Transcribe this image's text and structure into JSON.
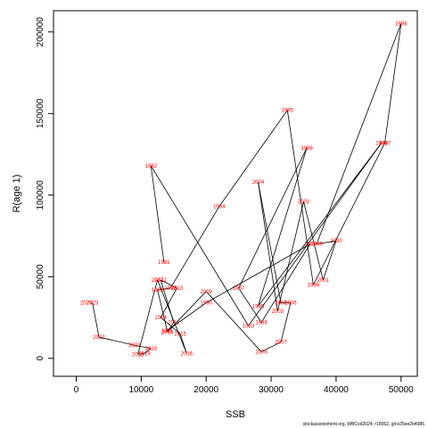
{
  "chart_data": {
    "type": "line",
    "title": "",
    "xlabel": "SSB",
    "ylabel": "R(age 1)",
    "xlim": [
      -3500,
      52500
    ],
    "ylim": [
      -11000,
      213000
    ],
    "xticks": [
      0,
      10000,
      20000,
      30000,
      40000,
      50000
    ],
    "yticks": [
      0,
      50000,
      100000,
      150000,
      200000
    ],
    "grid": false,
    "line_color": "#000000",
    "label_color": "#ff0000",
    "points": [
      {
        "year": "1981",
        "x": 13500,
        "y": 59000
      },
      {
        "year": "1982",
        "x": 11500,
        "y": 118000
      },
      {
        "year": "1983",
        "x": 26500,
        "y": 20000
      },
      {
        "year": "1984",
        "x": 47000,
        "y": 132000
      },
      {
        "year": "1985",
        "x": 28000,
        "y": 32000
      },
      {
        "year": "1986",
        "x": 35500,
        "y": 129000
      },
      {
        "year": "1987",
        "x": 25000,
        "y": 43000
      },
      {
        "year": "1988",
        "x": 28500,
        "y": 22000
      },
      {
        "year": "1989",
        "x": 36000,
        "y": 70000
      },
      {
        "year": "1990",
        "x": 20000,
        "y": 34000
      },
      {
        "year": "1991",
        "x": 14000,
        "y": 17000
      },
      {
        "year": "1992",
        "x": 12500,
        "y": 42000
      },
      {
        "year": "1993",
        "x": 14500,
        "y": 43000
      },
      {
        "year": "1994",
        "x": 22000,
        "y": 93000
      },
      {
        "year": "1995",
        "x": 32500,
        "y": 152000
      },
      {
        "year": "1996",
        "x": 36500,
        "y": 45000
      },
      {
        "year": "1997",
        "x": 47500,
        "y": 132000
      },
      {
        "year": "1998",
        "x": 50000,
        "y": 205000
      },
      {
        "year": "1999",
        "x": 37000,
        "y": 70000
      },
      {
        "year": "2000",
        "x": 40000,
        "y": 72000
      },
      {
        "year": "2001",
        "x": 38000,
        "y": 48000
      },
      {
        "year": "2002",
        "x": 35000,
        "y": 96000
      },
      {
        "year": "2003",
        "x": 31000,
        "y": 29000
      },
      {
        "year": "2004",
        "x": 28000,
        "y": 108000
      },
      {
        "year": "2005",
        "x": 31500,
        "y": 34000
      },
      {
        "year": "2006",
        "x": 33000,
        "y": 34000
      },
      {
        "year": "2007",
        "x": 31500,
        "y": 10000
      },
      {
        "year": "2008",
        "x": 28500,
        "y": 4000
      },
      {
        "year": "2009",
        "x": 20000,
        "y": 41000
      },
      {
        "year": "2010",
        "x": 14000,
        "y": 16000
      },
      {
        "year": "2011",
        "x": 15000,
        "y": 22000
      },
      {
        "year": "2012",
        "x": 13000,
        "y": 48000
      },
      {
        "year": "2013",
        "x": 15500,
        "y": 43000
      },
      {
        "year": "2014",
        "x": 13000,
        "y": 25000
      },
      {
        "year": "2015",
        "x": 16000,
        "y": 15000
      },
      {
        "year": "2016",
        "x": 17000,
        "y": 3000
      },
      {
        "year": "2017",
        "x": 12500,
        "y": 48000
      },
      {
        "year": "2018",
        "x": 9500,
        "y": 2500
      },
      {
        "year": "2019",
        "x": 10500,
        "y": 3000
      },
      {
        "year": "2020",
        "x": 11500,
        "y": 6000
      },
      {
        "year": "2021",
        "x": 9000,
        "y": 8000
      },
      {
        "year": "2022",
        "x": 3500,
        "y": 13000
      },
      {
        "year": "2023",
        "x": 2500,
        "y": 34000
      }
    ],
    "trailing_label": "2024",
    "footer": "stockassessment.org, WBCod2024, r18062, git:e35ee2b4986"
  }
}
